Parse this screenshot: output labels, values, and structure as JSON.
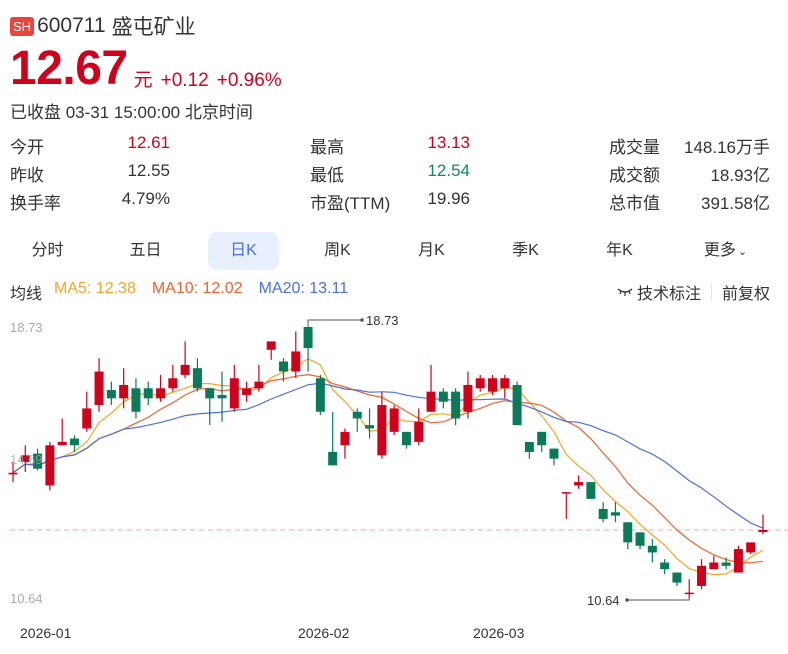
{
  "header": {
    "exchange_badge": "SH",
    "code": "600711",
    "name": "盛屯矿业",
    "price": "12.67",
    "unit": "元",
    "change": "+0.12",
    "change_pct": "+0.96%",
    "status": "已收盘 03-31 15:00:00 北京时间"
  },
  "stats": [
    {
      "label": "今开",
      "value": "12.61",
      "color": "red"
    },
    {
      "label": "最高",
      "value": "13.13",
      "color": "red"
    },
    {
      "label": "成交量",
      "value": "148.16万手",
      "color": "dark"
    },
    {
      "label": "昨收",
      "value": "12.55",
      "color": "dark"
    },
    {
      "label": "最低",
      "value": "12.54",
      "color": "green"
    },
    {
      "label": "成交额",
      "value": "18.93亿",
      "color": "dark"
    },
    {
      "label": "换手率",
      "value": "4.79%",
      "color": "dark"
    },
    {
      "label": "市盈(TTM)",
      "value": "19.96",
      "color": "dark"
    },
    {
      "label": "总市值",
      "value": "391.58亿",
      "color": "dark"
    }
  ],
  "tabs": [
    {
      "label": "分时"
    },
    {
      "label": "五日"
    },
    {
      "label": "日K",
      "active": true
    },
    {
      "label": "周K"
    },
    {
      "label": "月K"
    },
    {
      "label": "季K"
    },
    {
      "label": "年K"
    },
    {
      "label": "更多"
    }
  ],
  "ma": {
    "label": "均线",
    "ma5": "MA5: 12.38",
    "ma10": "MA10: 12.02",
    "ma20": "MA20: 13.11",
    "colors": {
      "ma5": "#f5a623",
      "ma10": "#f0622a",
      "ma20": "#4a6fe3"
    }
  },
  "tools": {
    "annotate": "技术标注",
    "adjust": "前复权"
  },
  "colors": {
    "up": "#d0021b",
    "down": "#0b7a5a",
    "accent": "#4a6fe3"
  },
  "chart_data": {
    "type": "candlestick",
    "title": "600711 盛屯矿业 日K",
    "y_ticks": [
      "18.73",
      "14.69",
      "10.64"
    ],
    "ylim": [
      10.64,
      18.73
    ],
    "x_ticks": [
      "2026-01",
      "2026-02",
      "2026-03"
    ],
    "max_annotation": "18.73",
    "min_annotation": "10.64",
    "last_close": 12.67,
    "series": [
      {
        "name": "MA5",
        "last": 12.38
      },
      {
        "name": "MA10",
        "last": 12.02
      },
      {
        "name": "MA20",
        "last": 13.11
      }
    ],
    "candles": [
      [
        14.33,
        14.38,
        14.7,
        14.1
      ],
      [
        14.7,
        14.9,
        15.2,
        14.4
      ],
      [
        14.95,
        14.5,
        15.1,
        14.45
      ],
      [
        14.0,
        15.2,
        15.3,
        13.85
      ],
      [
        15.2,
        15.3,
        16.0,
        15.2
      ],
      [
        15.4,
        15.2,
        15.5,
        15.0
      ],
      [
        15.7,
        16.3,
        16.8,
        15.6
      ],
      [
        16.4,
        17.4,
        17.8,
        16.2
      ],
      [
        16.85,
        16.6,
        17.1,
        16.4
      ],
      [
        16.6,
        17.0,
        17.5,
        16.3
      ],
      [
        16.9,
        16.2,
        17.2,
        16.0
      ],
      [
        16.9,
        16.6,
        17.1,
        16.4
      ],
      [
        16.6,
        16.9,
        17.3,
        16.5
      ],
      [
        16.9,
        17.2,
        17.6,
        16.8
      ],
      [
        17.3,
        17.6,
        18.3,
        17.2
      ],
      [
        17.5,
        16.9,
        17.8,
        16.8
      ],
      [
        16.9,
        16.6,
        16.9,
        15.8
      ],
      [
        16.7,
        16.6,
        17.4,
        15.9
      ],
      [
        16.3,
        17.2,
        17.6,
        16.2
      ],
      [
        16.7,
        16.9,
        17.1,
        16.5
      ],
      [
        16.9,
        17.1,
        17.6,
        16.8
      ],
      [
        18.05,
        18.3,
        18.3,
        17.75
      ],
      [
        17.7,
        17.4,
        17.8,
        17.1
      ],
      [
        17.4,
        18.0,
        18.6,
        17.2
      ],
      [
        18.73,
        18.1,
        18.73,
        17.4
      ],
      [
        17.2,
        16.2,
        17.3,
        16.1
      ],
      [
        15.0,
        14.6,
        16.2,
        14.6
      ],
      [
        15.2,
        15.6,
        15.7,
        14.8
      ],
      [
        16.2,
        16.0,
        16.3,
        15.6
      ],
      [
        15.8,
        15.7,
        16.3,
        15.4
      ],
      [
        14.9,
        16.4,
        16.8,
        14.8
      ],
      [
        15.6,
        16.3,
        16.4,
        15.5
      ],
      [
        15.6,
        15.2,
        15.6,
        15.1
      ],
      [
        15.3,
        15.9,
        16.3,
        15.2
      ],
      [
        16.2,
        16.8,
        16.2,
        17.6
      ],
      [
        16.8,
        16.5,
        16.9,
        16.3
      ],
      [
        16.8,
        16.0,
        16.9,
        15.8
      ],
      [
        16.2,
        17.0,
        17.4,
        16.0
      ],
      [
        16.9,
        17.2,
        17.3,
        16.8
      ],
      [
        16.8,
        17.2,
        17.3,
        16.7
      ],
      [
        16.9,
        17.2,
        17.3,
        16.6
      ],
      [
        17.0,
        15.8,
        17.1,
        15.8
      ],
      [
        15.3,
        15.0,
        15.2,
        14.8
      ],
      [
        15.6,
        15.2,
        15.6,
        15.0
      ],
      [
        15.1,
        14.8,
        15.1,
        14.6
      ],
      [
        13.8,
        13.8,
        13.8,
        13.0
      ],
      [
        14.0,
        14.1,
        14.3,
        13.9
      ],
      [
        14.1,
        13.6,
        14.1,
        13.6
      ],
      [
        13.3,
        13.0,
        13.5,
        12.9
      ],
      [
        13.2,
        13.1,
        13.5,
        12.9
      ],
      [
        12.9,
        12.3,
        12.9,
        12.1
      ],
      [
        12.6,
        12.2,
        12.6,
        12.1
      ],
      [
        12.2,
        12.0,
        12.4,
        11.7
      ],
      [
        11.7,
        11.5,
        11.8,
        11.35
      ],
      [
        11.4,
        11.1,
        11.4,
        11.0
      ],
      [
        10.8,
        10.8,
        11.2,
        10.64
      ],
      [
        11.0,
        11.6,
        11.8,
        10.9
      ],
      [
        11.5,
        11.7,
        11.9,
        11.5
      ],
      [
        11.7,
        11.6,
        11.85,
        11.5
      ],
      [
        11.4,
        12.1,
        12.2,
        11.4
      ],
      [
        12.0,
        12.3,
        12.3,
        11.95
      ],
      [
        12.61,
        12.67,
        13.13,
        12.54
      ]
    ]
  }
}
